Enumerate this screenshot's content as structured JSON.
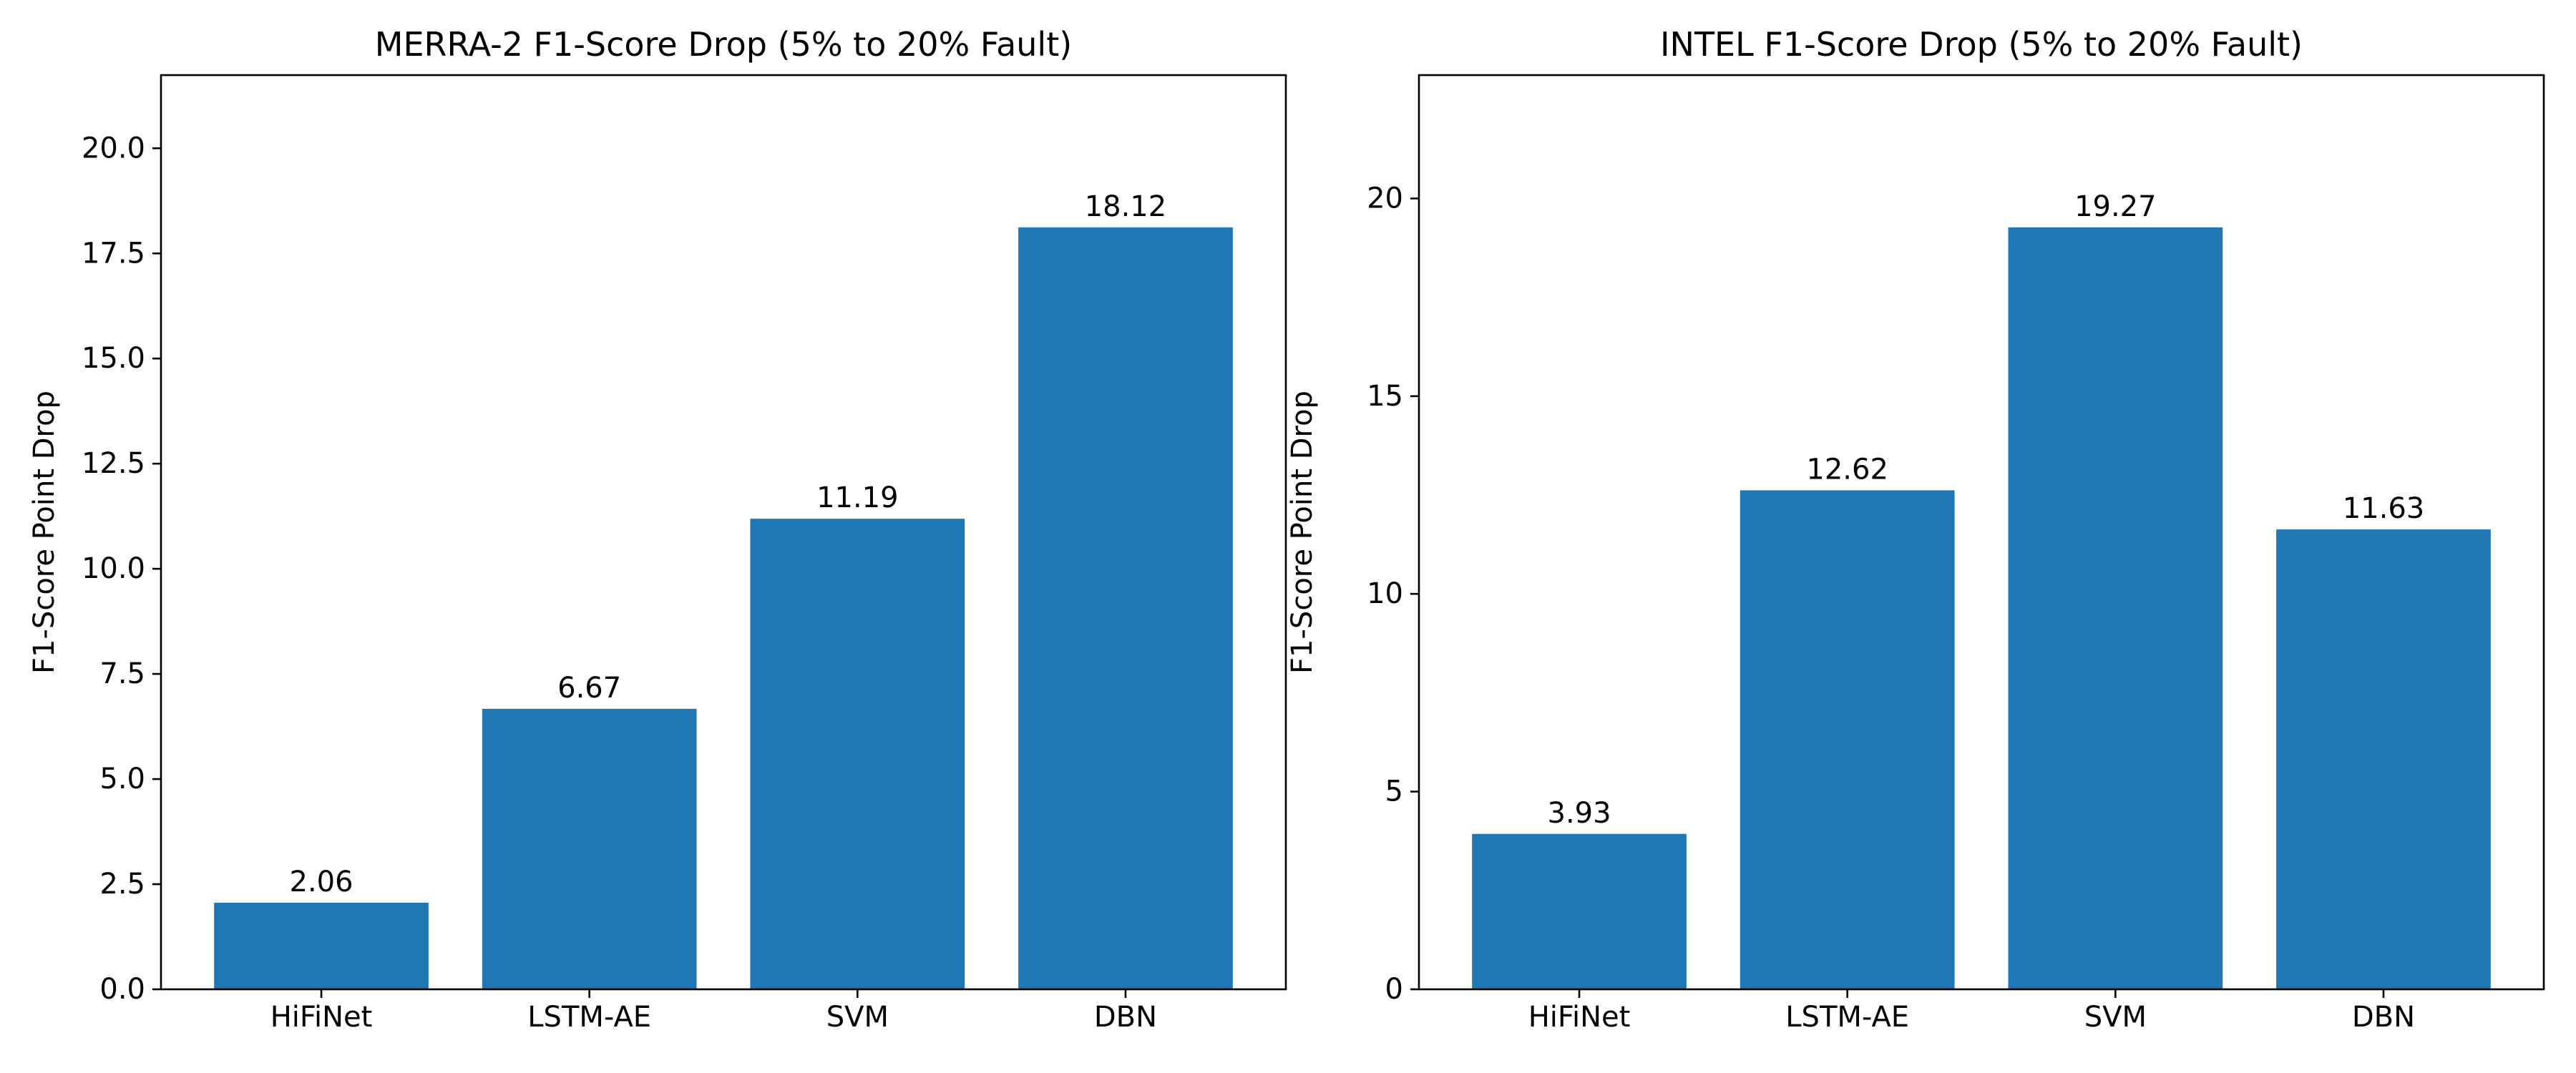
{
  "chart_data": [
    {
      "type": "bar",
      "title": "MERRA-2 F1-Score Drop (5% to 20% Fault)",
      "xlabel": "",
      "ylabel": "F1-Score Point Drop",
      "categories": [
        "HiFiNet",
        "LSTM-AE",
        "SVM",
        "DBN"
      ],
      "values": [
        2.06,
        6.67,
        11.19,
        18.12
      ],
      "value_labels": [
        "2.06",
        "6.67",
        "11.19",
        "18.12"
      ],
      "ylim": [
        0,
        21.74
      ],
      "yticks": [
        0,
        2.5,
        5,
        7.5,
        10,
        12.5,
        15,
        17.5,
        20
      ],
      "ytick_labels": [
        "0.0",
        "2.5",
        "5.0",
        "7.5",
        "10.0",
        "12.5",
        "15.0",
        "17.5",
        "20.0"
      ],
      "bar_color": "#1f77b4",
      "grid": false,
      "legend": false
    },
    {
      "type": "bar",
      "title": "INTEL F1-Score Drop (5% to 20% Fault)",
      "xlabel": "",
      "ylabel": "F1-Score Point Drop",
      "categories": [
        "HiFiNet",
        "LSTM-AE",
        "SVM",
        "DBN"
      ],
      "values": [
        3.93,
        12.62,
        19.27,
        11.63
      ],
      "value_labels": [
        "3.93",
        "12.62",
        "19.27",
        "11.63"
      ],
      "ylim": [
        0,
        23.12
      ],
      "yticks": [
        0,
        5,
        10,
        15,
        20
      ],
      "ytick_labels": [
        "0",
        "5",
        "10",
        "15",
        "20"
      ],
      "bar_color": "#1f77b4",
      "grid": false,
      "legend": false
    }
  ]
}
